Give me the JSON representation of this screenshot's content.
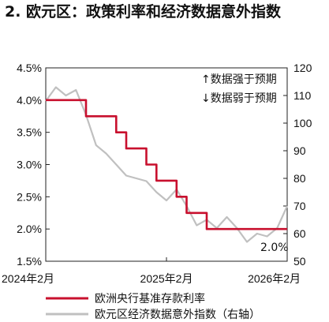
{
  "title": "2. 欧元区：政策利率和经济数据意外指数",
  "chart_data": {
    "type": "line",
    "x_tick_labels": [
      "2024年2月",
      "2025年2月",
      "2026年2月"
    ],
    "left_axis": {
      "ylim": [
        1.5,
        4.5
      ],
      "ticks": [
        "1.5%",
        "2.0%",
        "2.5%",
        "3.0%",
        "3.5%",
        "4.0%",
        "4.5%"
      ]
    },
    "right_axis": {
      "ylim": [
        50,
        120
      ],
      "ticks": [
        "50",
        "60",
        "70",
        "80",
        "90",
        "100",
        "110",
        "120"
      ]
    },
    "annotations": {
      "up": "↑数据强于预期",
      "down": "↓数据弱于预期",
      "end_label": "2.0%"
    },
    "series": [
      {
        "name": "欧洲央行基准存款利率",
        "axis": "left",
        "color": "#c8102e",
        "step": true,
        "x": [
          "2024-02",
          "2024-06",
          "2024-09",
          "2024-10",
          "2024-12",
          "2025-01",
          "2025-03",
          "2025-04",
          "2025-06",
          "2026-02"
        ],
        "values": [
          4.0,
          3.75,
          3.5,
          3.25,
          3.0,
          2.75,
          2.5,
          2.25,
          2.0,
          2.0
        ]
      },
      {
        "name": "欧元区经济数据意外指数（右轴）",
        "axis": "right",
        "color": "#c0c0c0",
        "x": [
          "2024-02",
          "2024-03",
          "2024-04",
          "2024-05",
          "2024-06",
          "2024-07",
          "2024-08",
          "2024-09",
          "2024-10",
          "2024-11",
          "2024-12",
          "2025-01",
          "2025-02",
          "2025-03",
          "2025-04",
          "2025-05",
          "2025-06",
          "2025-07",
          "2025-08",
          "2025-09",
          "2025-10",
          "2025-11",
          "2025-12",
          "2026-01",
          "2026-02"
        ],
        "values": [
          108,
          113,
          110,
          112,
          103,
          92,
          89,
          85,
          81,
          80,
          79,
          75,
          72,
          76,
          70,
          63,
          65,
          62,
          66,
          62,
          57,
          60,
          59,
          62,
          70
        ]
      }
    ]
  }
}
